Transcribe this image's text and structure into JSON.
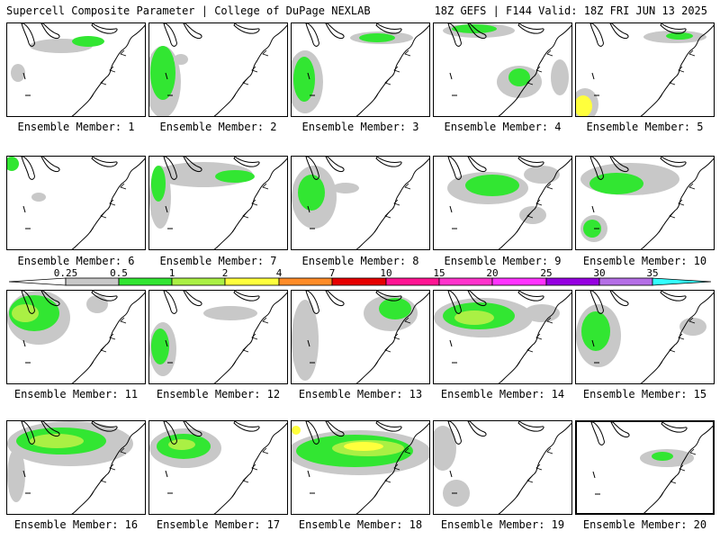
{
  "header": {
    "left": "Supercell Composite Parameter | College of DuPage NEXLAB",
    "right": "18Z GEFS | F144 Valid: 18Z FRI JUN 13 2025"
  },
  "colorbar": {
    "labels": [
      "0.25",
      "0.5",
      "1",
      "2",
      "4",
      "7",
      "10",
      "15",
      "20",
      "25",
      "30",
      "35"
    ],
    "colors": [
      "#c8c8c8",
      "#32e632",
      "#aaf044",
      "#ffff3c",
      "#ff8c28",
      "#e60000",
      "#ff1493",
      "#ff33cc",
      "#ff33ff",
      "#9600e1",
      "#b46ee6",
      "#33ffff"
    ]
  },
  "members": [
    {
      "label": "Ensemble Member: 1"
    },
    {
      "label": "Ensemble Member: 2"
    },
    {
      "label": "Ensemble Member: 3"
    },
    {
      "label": "Ensemble Member: 4"
    },
    {
      "label": "Ensemble Member: 5"
    },
    {
      "label": "Ensemble Member: 6"
    },
    {
      "label": "Ensemble Member: 7"
    },
    {
      "label": "Ensemble Member: 8"
    },
    {
      "label": "Ensemble Member: 9"
    },
    {
      "label": "Ensemble Member: 10"
    },
    {
      "label": "Ensemble Member: 11"
    },
    {
      "label": "Ensemble Member: 12"
    },
    {
      "label": "Ensemble Member: 13"
    },
    {
      "label": "Ensemble Member: 14"
    },
    {
      "label": "Ensemble Member: 15"
    },
    {
      "label": "Ensemble Member: 16"
    },
    {
      "label": "Ensemble Member: 17"
    },
    {
      "label": "Ensemble Member: 18"
    },
    {
      "label": "Ensemble Member: 19"
    },
    {
      "label": "Ensemble Member: 20"
    }
  ]
}
